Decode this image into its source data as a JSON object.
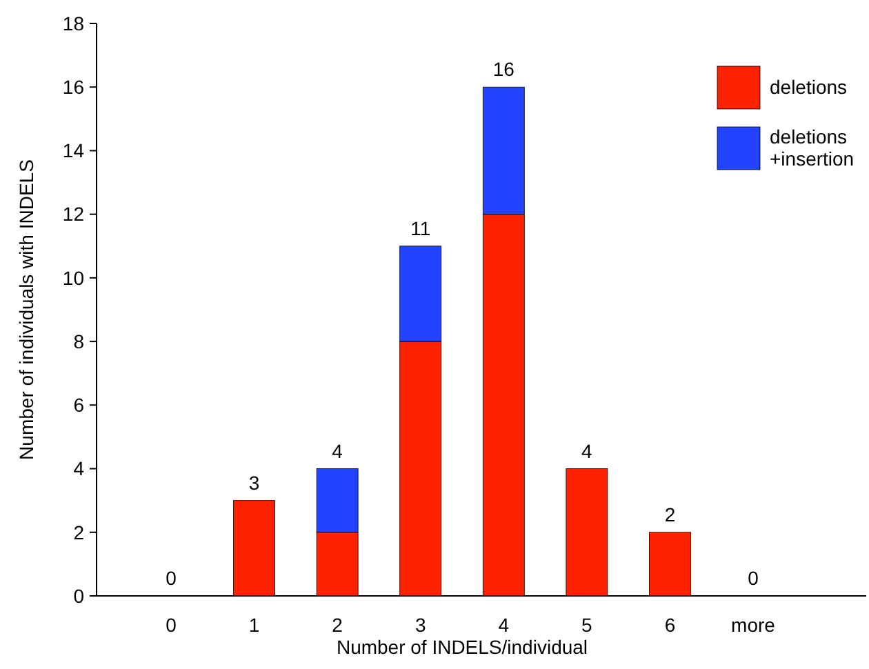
{
  "chart_data": {
    "type": "bar",
    "stacked": true,
    "xlabel": "Number of INDELS/individual",
    "ylabel": "Number of individuals with INDELS",
    "categories": [
      "0",
      "1",
      "2",
      "3",
      "4",
      "5",
      "6",
      "more"
    ],
    "series": [
      {
        "name": "deletions",
        "color": "#ff2200",
        "values": [
          0,
          3,
          2,
          8,
          12,
          4,
          2,
          0
        ]
      },
      {
        "name": "deletions +insertion",
        "color": "#2244ff",
        "values": [
          0,
          0,
          2,
          3,
          4,
          0,
          0,
          0
        ]
      }
    ],
    "totals": [
      "0",
      "3",
      "4",
      "11",
      "16",
      "4",
      "2",
      "0"
    ],
    "ylim": [
      0,
      18
    ],
    "yticks": [
      0,
      2,
      4,
      6,
      8,
      10,
      12,
      14,
      16,
      18
    ],
    "grid": false,
    "legend": "top right"
  }
}
